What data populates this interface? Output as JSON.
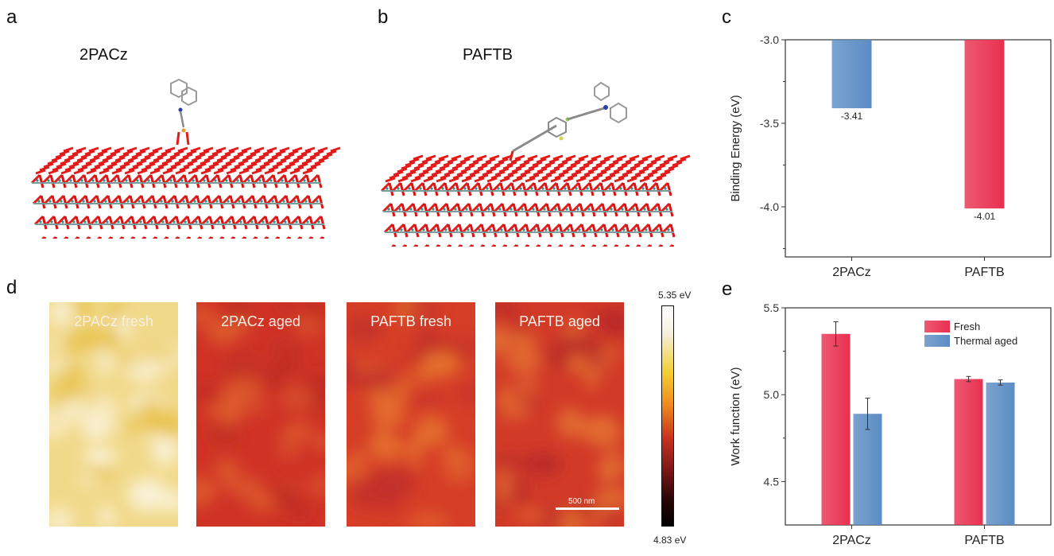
{
  "panels": {
    "a": {
      "letter": "a",
      "title": "2PACz"
    },
    "b": {
      "letter": "b",
      "title": "PAFTB"
    },
    "c": {
      "letter": "c"
    },
    "d": {
      "letter": "d",
      "images": [
        {
          "label": "2PACz fresh",
          "base": "#f1d98a",
          "light": "#fbf3dc",
          "dark": "#e8c24a"
        },
        {
          "label": "2PACz aged",
          "base": "#cf3326",
          "light": "#dd5a2c",
          "dark": "#bb2b22"
        },
        {
          "label": "PAFTB fresh",
          "base": "#d63e27",
          "light": "#e5712d",
          "dark": "#c2302a"
        },
        {
          "label": "PAFTB aged",
          "base": "#d23a28",
          "light": "#e36f31",
          "dark": "#b82b27"
        }
      ],
      "scalebar_label": "500 nm",
      "colorbar": {
        "max_label": "5.35 eV",
        "min_label": "4.83 eV",
        "max": 5.35,
        "min": 4.83
      }
    },
    "e": {
      "letter": "e"
    }
  },
  "chart_data": [
    {
      "id": "c",
      "type": "bar",
      "title": "",
      "xlabel": "",
      "ylabel": "Binding Energy (eV)",
      "categories": [
        "2PACz",
        "PAFTB"
      ],
      "values": [
        -3.41,
        -4.01
      ],
      "data_labels": [
        "-3.41",
        "-4.01"
      ],
      "colors": [
        "#5b8cc4",
        "#e8304f"
      ],
      "ylim": [
        -4.3,
        -3.0
      ],
      "yticks": [
        -3.0,
        -3.5,
        -4.0
      ],
      "ytick_labels": [
        "-3.0",
        "-3.5",
        "-4.0"
      ],
      "yminor_ticks": [
        -3.25,
        -3.75,
        -4.25
      ],
      "baseline": -3.0,
      "grid": false
    },
    {
      "id": "e",
      "type": "bar",
      "title": "",
      "xlabel": "",
      "ylabel": "Work function (eV)",
      "categories": [
        "2PACz",
        "PAFTB"
      ],
      "series": [
        {
          "name": "Fresh",
          "values": [
            5.35,
            5.09
          ],
          "errors": [
            0.07,
            0.015
          ],
          "color": "#e8304f"
        },
        {
          "name": "Thermal aged",
          "values": [
            4.89,
            5.07
          ],
          "errors": [
            0.09,
            0.015
          ],
          "color": "#5b8cc4"
        }
      ],
      "ylim": [
        4.25,
        5.5
      ],
      "yticks": [
        4.5,
        5.0,
        5.5
      ],
      "ytick_labels": [
        "4.5",
        "5.0",
        "5.5"
      ],
      "yminor_ticks": [
        4.75,
        5.25
      ],
      "legend": "top-right",
      "grid": false
    }
  ]
}
